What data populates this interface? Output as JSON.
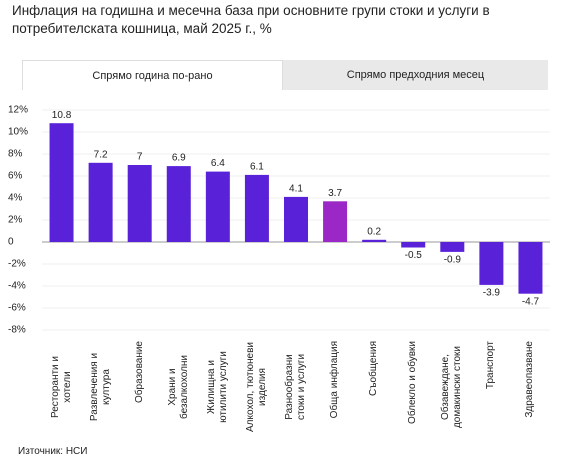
{
  "chart_data": {
    "type": "bar",
    "title": "Инфлация на годишна и месечна база при основните групи стоки и услуги в потребителската кошница, май 2025 г., %",
    "tabs": [
      "Спрямо година по-рано",
      "Спрямо предходния месец"
    ],
    "categories": [
      "Ресторанти и хотели",
      "Развлечения и култура",
      "Образование",
      "Храни и безалкохолни",
      "Жилищна и ютилити услуги",
      "Алкохол, тютюневи изделия",
      "Разнообразни стоки и услуги",
      "Обща инфлация",
      "Съобщения",
      "Облекло и обувки",
      "Обзавеждане, домакински стоки",
      "Транспорт",
      "Здравеопазване"
    ],
    "values": [
      10.8,
      7.2,
      7,
      6.9,
      6.4,
      6.1,
      4.1,
      3.7,
      0.2,
      -0.5,
      -0.9,
      -3.9,
      -4.7
    ],
    "colors": [
      "#5a22d8",
      "#5a22d8",
      "#5a22d8",
      "#5a22d8",
      "#5a22d8",
      "#5a22d8",
      "#5a22d8",
      "#9b27c7",
      "#5a22d8",
      "#5a22d8",
      "#5a22d8",
      "#5a22d8",
      "#5a22d8"
    ],
    "ylim": [
      -8,
      12
    ],
    "yticks": [
      {
        "value": 12,
        "label": "12%"
      },
      {
        "value": 10,
        "label": "10%"
      },
      {
        "value": 8,
        "label": "8%"
      },
      {
        "value": 6,
        "label": "6%"
      },
      {
        "value": 4,
        "label": "4%"
      },
      {
        "value": 2,
        "label": "2%"
      },
      0,
      {
        "value": -2,
        "label": "-2%"
      },
      {
        "value": -4,
        "label": "-4%"
      },
      {
        "value": -6,
        "label": "-6%"
      },
      {
        "value": -8,
        "label": "-8%"
      }
    ],
    "grid": true,
    "source": "Източник: НСИ"
  }
}
